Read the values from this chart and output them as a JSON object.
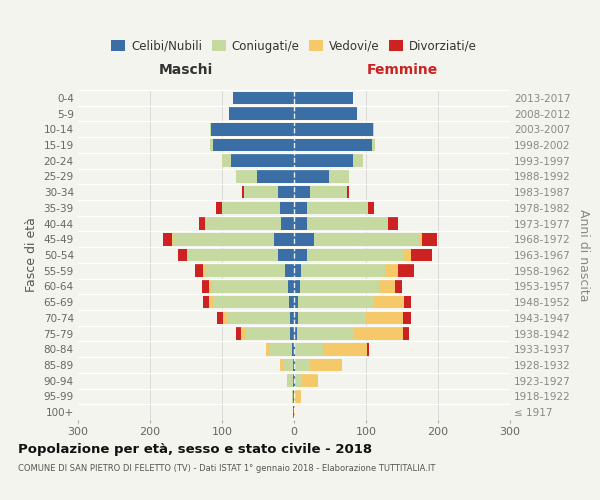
{
  "age_groups": [
    "100+",
    "95-99",
    "90-94",
    "85-89",
    "80-84",
    "75-79",
    "70-74",
    "65-69",
    "60-64",
    "55-59",
    "50-54",
    "45-49",
    "40-44",
    "35-39",
    "30-34",
    "25-29",
    "20-24",
    "15-19",
    "10-14",
    "5-9",
    "0-4"
  ],
  "birth_years": [
    "≤ 1917",
    "1918-1922",
    "1923-1927",
    "1928-1932",
    "1933-1937",
    "1938-1942",
    "1943-1947",
    "1948-1952",
    "1953-1957",
    "1958-1962",
    "1963-1967",
    "1968-1972",
    "1973-1977",
    "1978-1982",
    "1983-1987",
    "1988-1992",
    "1993-1997",
    "1998-2002",
    "2003-2007",
    "2008-2012",
    "2013-2017"
  ],
  "colors": {
    "celibi": "#3a6ea5",
    "coniugati": "#c5d9a0",
    "vedovi": "#f5c96a",
    "divorziati": "#cc2222"
  },
  "maschi": {
    "celibi": [
      1,
      1,
      2,
      2,
      3,
      5,
      6,
      7,
      9,
      12,
      22,
      28,
      18,
      20,
      22,
      52,
      88,
      112,
      115,
      90,
      85
    ],
    "coniugati": [
      0,
      2,
      6,
      12,
      30,
      62,
      85,
      105,
      105,
      112,
      125,
      140,
      105,
      80,
      48,
      28,
      12,
      5,
      1,
      0,
      0
    ],
    "vedovi": [
      0,
      0,
      2,
      5,
      6,
      6,
      8,
      6,
      4,
      2,
      2,
      2,
      1,
      0,
      0,
      0,
      0,
      0,
      0,
      0,
      0
    ],
    "divorziati": [
      0,
      0,
      0,
      0,
      0,
      8,
      8,
      8,
      10,
      12,
      12,
      12,
      8,
      8,
      2,
      0,
      0,
      0,
      0,
      0,
      0
    ]
  },
  "femmine": {
    "nubili": [
      0,
      0,
      1,
      2,
      2,
      4,
      5,
      6,
      8,
      10,
      18,
      28,
      18,
      18,
      22,
      48,
      82,
      108,
      110,
      88,
      82
    ],
    "coniugate": [
      0,
      2,
      10,
      20,
      38,
      80,
      95,
      105,
      110,
      118,
      135,
      145,
      112,
      85,
      52,
      28,
      14,
      5,
      1,
      0,
      0
    ],
    "vedove": [
      2,
      8,
      22,
      45,
      62,
      68,
      52,
      42,
      22,
      16,
      10,
      5,
      1,
      0,
      0,
      0,
      0,
      0,
      0,
      0,
      0
    ],
    "divorziate": [
      0,
      0,
      0,
      0,
      2,
      8,
      10,
      10,
      10,
      22,
      28,
      20,
      14,
      8,
      2,
      0,
      0,
      0,
      0,
      0,
      0
    ]
  },
  "xlim": 300,
  "bg_color": "#f4f4ee",
  "title": "Popolazione per età, sesso e stato civile - 2018",
  "subtitle": "COMUNE DI SAN PIETRO DI FELETTO (TV) - Dati ISTAT 1° gennaio 2018 - Elaborazione TUTTITALIA.IT",
  "ylabel_left": "Fasce di età",
  "ylabel_right": "Anni di nascita",
  "maschi_label": "Maschi",
  "femmine_label": "Femmine",
  "legend_labels": [
    "Celibi/Nubili",
    "Coniugati/e",
    "Vedovi/e",
    "Divorziati/e"
  ]
}
